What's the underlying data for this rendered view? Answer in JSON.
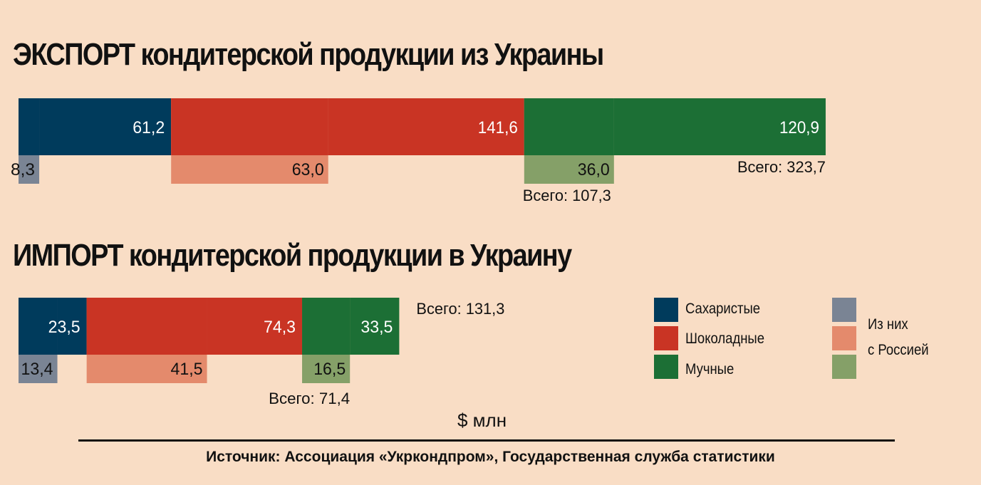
{
  "titles": {
    "export": "ЭКСПОРТ кондитерской продукции из Украины",
    "import": "ИМПОРТ кондитерской продукции в Украину"
  },
  "unit": "$ млн",
  "source": "Источник: Ассоциация «Укркондпром», Государственная служба статистики",
  "legend": {
    "categories": [
      {
        "label": "Сахаристые",
        "color": "#003b5c"
      },
      {
        "label": "Шоколадные",
        "color": "#c93424"
      },
      {
        "label": "Мучные",
        "color": "#1c6f35"
      }
    ],
    "russia_label_line1": "Из них",
    "russia_label_line2": "с Россией",
    "russia_colors": [
      "#7a8494",
      "#e48a6c",
      "#85a068"
    ]
  },
  "colors": {
    "sugar": "#003b5c",
    "sugar_light": "#7a8494",
    "choc": "#c93424",
    "choc_light": "#e48a6c",
    "flour": "#1c6f35",
    "flour_light": "#85a068",
    "label_light": "#ffffff",
    "label_dark": "#111111"
  },
  "chart_data": [
    {
      "type": "bar",
      "title": "ЭКСПОРТ кондитерской продукции из Украины",
      "categories": [
        "Сахаристые",
        "Шоколадные",
        "Мучные"
      ],
      "series": [
        {
          "name": "",
          "values": [
            61.2,
            141.6,
            120.9
          ],
          "labels": [
            "61,2",
            "141,6",
            "120,9"
          ]
        },
        {
          "name": "Из них с Россией",
          "values": [
            8.3,
            63.0,
            36.0
          ],
          "labels": [
            "8,3",
            "63,0",
            "36,0"
          ]
        }
      ],
      "totals": [
        {
          "label": "Всего: 323,7",
          "value": 323.7
        },
        {
          "label": "Всего: 107,3",
          "value": 107.3
        }
      ]
    },
    {
      "type": "bar",
      "title": "ИМПОРТ кондитерской продукции в Украину",
      "categories": [
        "Сахаристые",
        "Шоколадные",
        "Мучные"
      ],
      "series": [
        {
          "name": "",
          "values": [
            23.5,
            74.3,
            33.5
          ],
          "labels": [
            "23,5",
            "74,3",
            "33,5"
          ]
        },
        {
          "name": "Из них с Россией",
          "values": [
            13.4,
            41.5,
            16.5
          ],
          "labels": [
            "13,4",
            "41,5",
            "16,5"
          ]
        }
      ],
      "totals": [
        {
          "label": "Всего: 131,3",
          "value": 131.3
        },
        {
          "label": "Всего: 71,4",
          "value": 71.4
        }
      ]
    }
  ]
}
